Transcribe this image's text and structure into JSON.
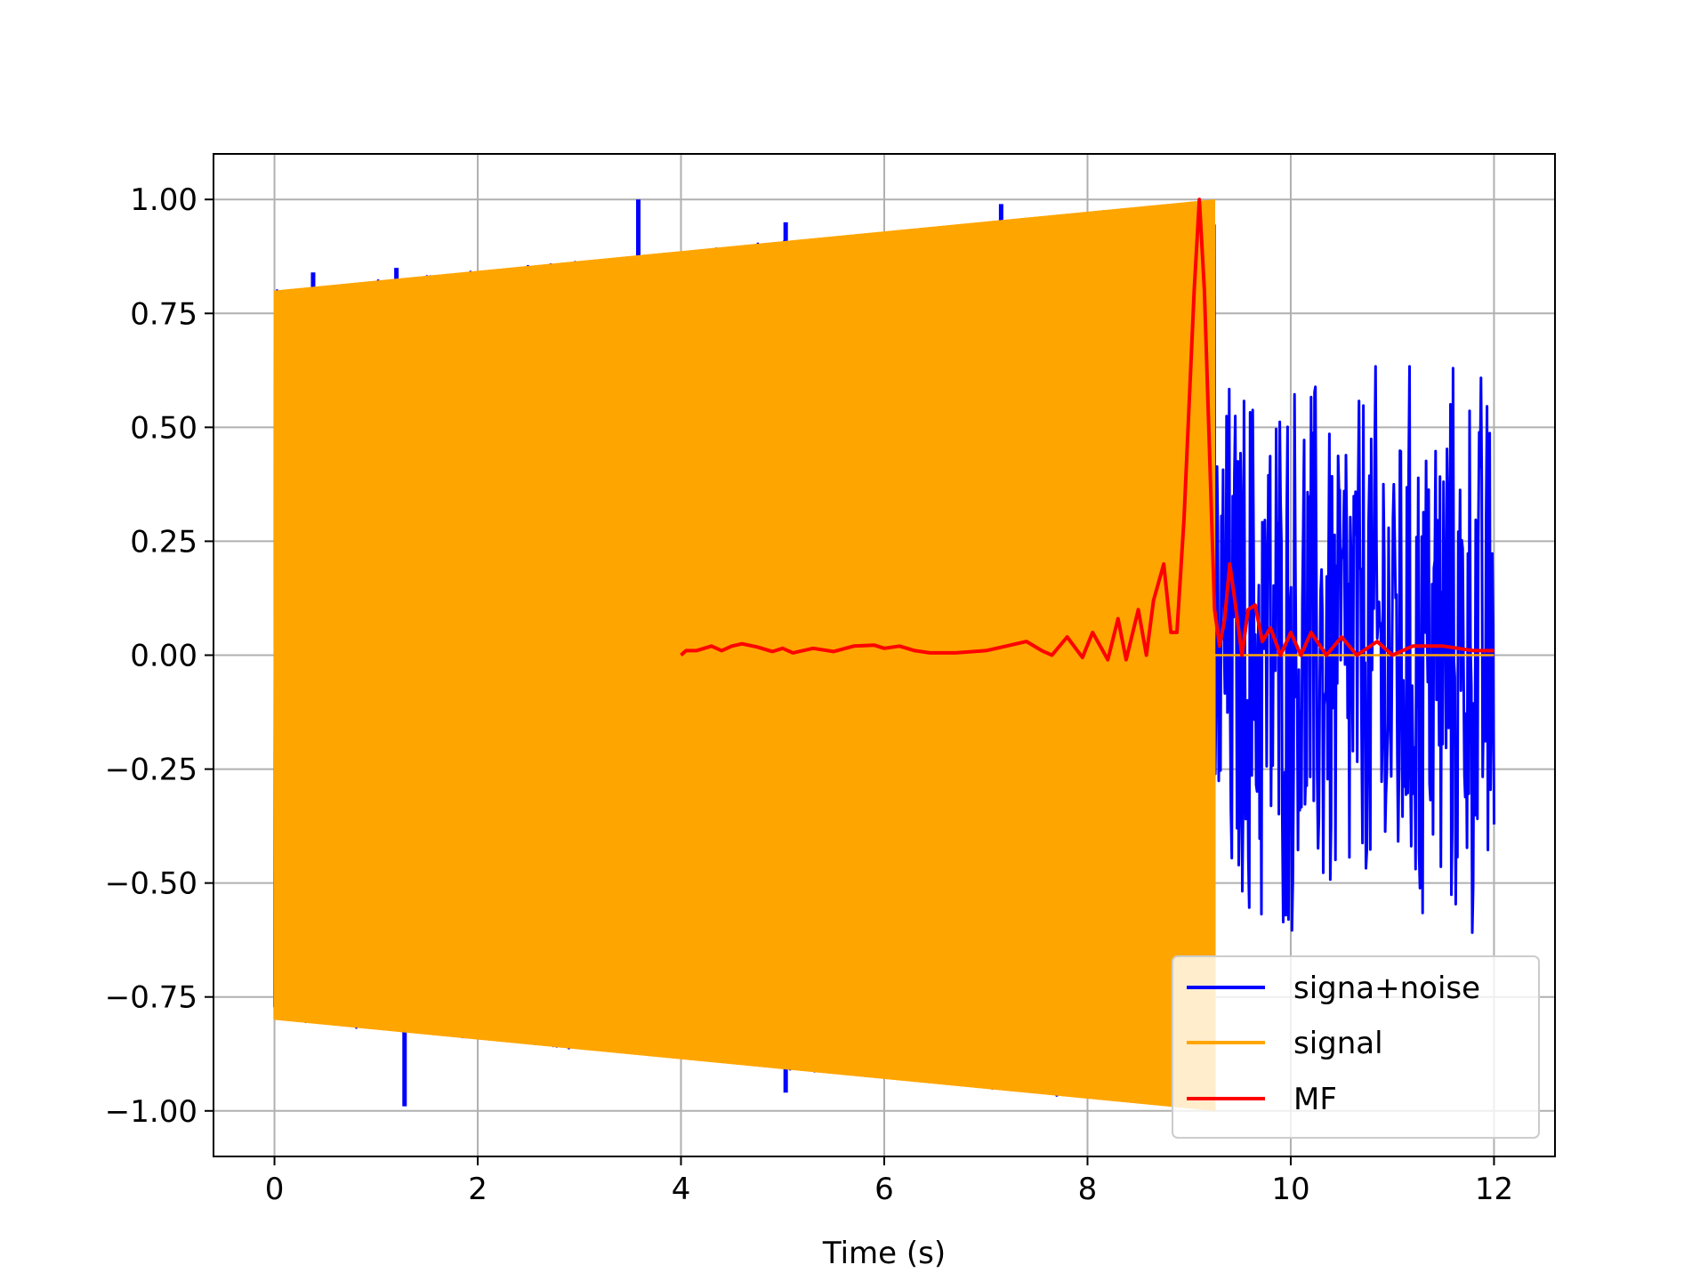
{
  "chart_data": {
    "type": "line",
    "title": "",
    "xlabel": "Time (s)",
    "ylabel": "",
    "xlim": [
      -0.6,
      12.6
    ],
    "ylim": [
      -1.1,
      1.1
    ],
    "grid": true,
    "xticks": [
      0,
      2,
      4,
      6,
      8,
      10,
      12
    ],
    "xtick_labels": [
      "0",
      "2",
      "4",
      "6",
      "8",
      "10",
      "12"
    ],
    "yticks": [
      1.0,
      0.75,
      0.5,
      0.25,
      0.0,
      -0.25,
      -0.5,
      -0.75,
      -1.0
    ],
    "ytick_labels": [
      "1.00",
      "0.75",
      "0.50",
      "0.25",
      "0.00",
      "−0.25",
      "−0.50",
      "−0.75",
      "−1.00"
    ],
    "legend": {
      "placement": "lower right"
    },
    "series": [
      {
        "name": "signa+noise",
        "color": "#0000ff",
        "kind": "noise",
        "x_range": [
          0,
          12
        ],
        "envelope_during_signal": [
          [
            0,
            0.8
          ],
          [
            9.25,
            1.0
          ]
        ],
        "noise_range": [
          -0.7,
          0.7
        ],
        "spikes": [
          {
            "x": 0.38,
            "y": 0.84
          },
          {
            "x": 1.2,
            "y": 0.85
          },
          {
            "x": 1.28,
            "y": -0.99
          },
          {
            "x": 3.58,
            "y": 1.0
          },
          {
            "x": 3.58,
            "y": -0.85
          },
          {
            "x": 5.03,
            "y": 0.95
          },
          {
            "x": 5.03,
            "y": -0.96
          },
          {
            "x": 7.15,
            "y": 0.99
          }
        ]
      },
      {
        "name": "signal",
        "color": "#ffa500",
        "kind": "chirp",
        "x_range": [
          0,
          12
        ],
        "active_range": [
          0,
          9.25
        ],
        "amplitude": [
          [
            0,
            0.8
          ],
          [
            9.25,
            1.0
          ]
        ],
        "after_value": 0.0
      },
      {
        "name": "MF",
        "color": "#ff0000",
        "kind": "line",
        "x": [
          4.0,
          4.05,
          4.15,
          4.3,
          4.4,
          4.5,
          4.6,
          4.75,
          4.9,
          5.0,
          5.1,
          5.3,
          5.5,
          5.7,
          5.9,
          6.0,
          6.15,
          6.3,
          6.45,
          6.7,
          7.0,
          7.2,
          7.4,
          7.55,
          7.65,
          7.8,
          7.95,
          8.05,
          8.2,
          8.3,
          8.38,
          8.5,
          8.58,
          8.65,
          8.75,
          8.82,
          8.88,
          8.95,
          9.0,
          9.05,
          9.1,
          9.15,
          9.2,
          9.25,
          9.3,
          9.35,
          9.4,
          9.45,
          9.52,
          9.58,
          9.65,
          9.72,
          9.8,
          9.9,
          10.0,
          10.1,
          10.2,
          10.35,
          10.5,
          10.65,
          10.85,
          11.0,
          11.2,
          11.5,
          11.8,
          12.0
        ],
        "y": [
          0.0,
          0.01,
          0.01,
          0.02,
          0.01,
          0.02,
          0.025,
          0.018,
          0.008,
          0.015,
          0.005,
          0.015,
          0.008,
          0.02,
          0.022,
          0.015,
          0.02,
          0.01,
          0.005,
          0.005,
          0.01,
          0.02,
          0.03,
          0.01,
          0.0,
          0.04,
          -0.005,
          0.05,
          -0.01,
          0.08,
          -0.01,
          0.1,
          0.0,
          0.12,
          0.2,
          0.05,
          0.05,
          0.3,
          0.55,
          0.8,
          1.0,
          0.8,
          0.45,
          0.1,
          0.02,
          0.08,
          0.2,
          0.12,
          0.0,
          0.1,
          0.11,
          0.03,
          0.06,
          0.0,
          0.05,
          0.0,
          0.05,
          0.0,
          0.04,
          0.0,
          0.03,
          0.0,
          0.02,
          0.02,
          0.01,
          0.01
        ]
      }
    ]
  }
}
